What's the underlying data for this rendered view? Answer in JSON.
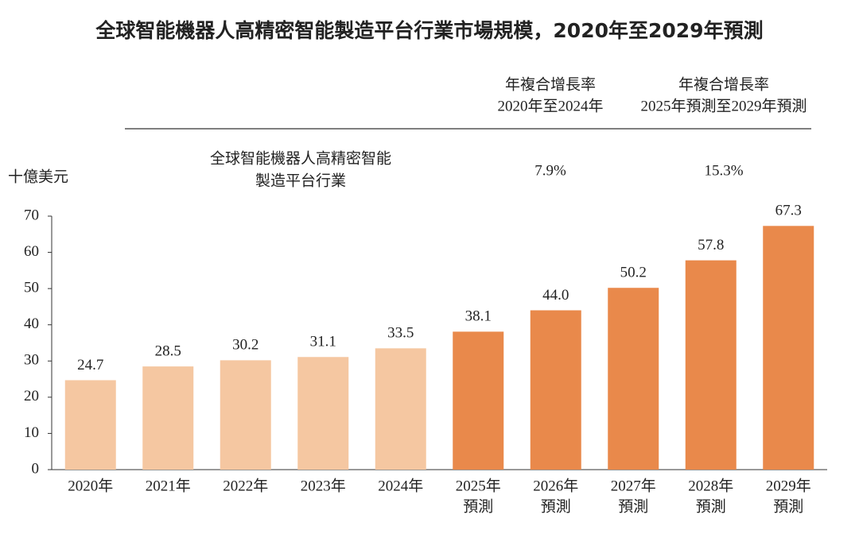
{
  "chart_data": {
    "type": "bar",
    "title": "全球智能機器人高精密智能製造平台行業市場規模，2020年至2029年預測",
    "ylabel": "十億美元",
    "categories": [
      [
        "2020年"
      ],
      [
        "2021年"
      ],
      [
        "2022年"
      ],
      [
        "2023年"
      ],
      [
        "2024年"
      ],
      [
        "2025年",
        "預測"
      ],
      [
        "2026年",
        "預測"
      ],
      [
        "2027年",
        "預測"
      ],
      [
        "2028年",
        "預測"
      ],
      [
        "2029年",
        "預測"
      ]
    ],
    "values": [
      24.7,
      28.5,
      30.2,
      31.1,
      33.5,
      38.1,
      44.0,
      50.2,
      57.8,
      67.3
    ],
    "value_labels": [
      "24.7",
      "28.5",
      "30.2",
      "31.1",
      "33.5",
      "38.1",
      "44.0",
      "50.2",
      "57.8",
      "67.3"
    ],
    "colors": [
      "#f5c7a1",
      "#f5c7a1",
      "#f5c7a1",
      "#f5c7a1",
      "#f5c7a1",
      "#e9894b",
      "#e9894b",
      "#e9894b",
      "#e9894b",
      "#e9894b"
    ],
    "ylim": [
      0,
      70
    ],
    "yticks": [
      0,
      10,
      20,
      30,
      40,
      50,
      60,
      70
    ],
    "cagr_table": {
      "columns": [
        [
          "年複合增長率",
          "2020年至2024年"
        ],
        [
          "年複合增長率",
          "2025年預測至2029年預測"
        ]
      ],
      "row_label": [
        "全球智能機器人高精密智能",
        "製造平台行業"
      ],
      "values": [
        7.9,
        15.3
      ],
      "value_labels": [
        "7.9%",
        "15.3%"
      ]
    }
  }
}
